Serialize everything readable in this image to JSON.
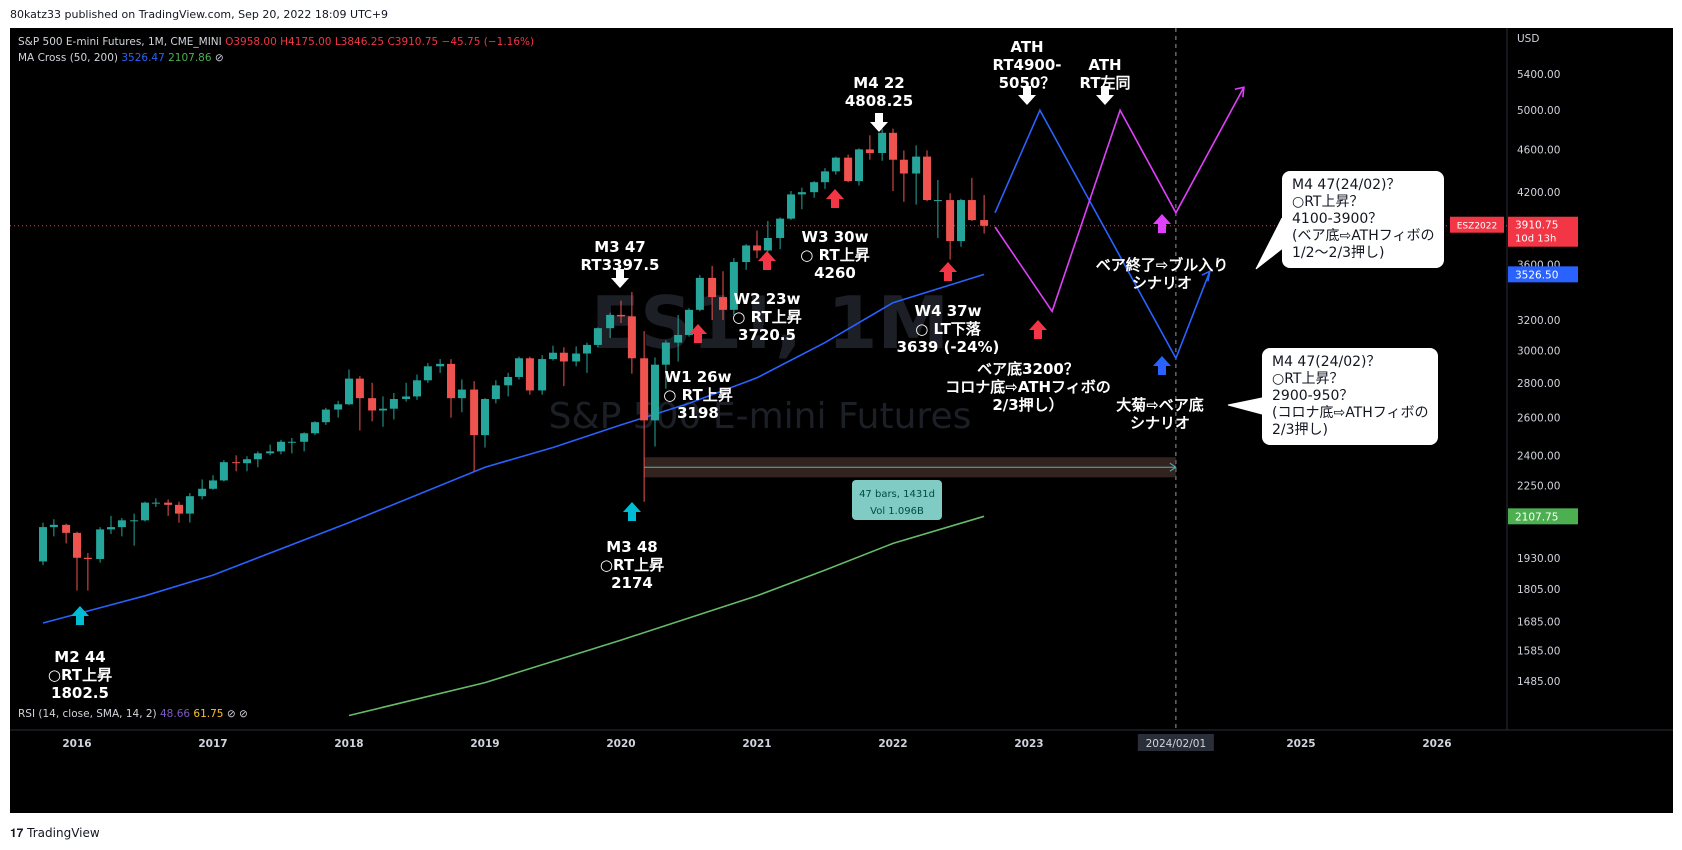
{
  "publisher_line": "80katz33 published on TradingView.com, Sep 20, 2022 18:09 UTC+9",
  "header": {
    "symbol_line_prefix": "S&P 500 E-mini Futures, 1M, CME_MINI",
    "ohlc": {
      "O": "O3958.00",
      "H": "H4175.00",
      "L": "L3846.25",
      "C": "C3910.75",
      "chg": "−45.75 (−1.16%)"
    },
    "ma_label": "MA Cross (50, 200)",
    "ma50": "3526.47",
    "ma200": "2107.86",
    "ma_icon": "⊘"
  },
  "rsi_label": "RSI (14, close, SMA, 14, 2)",
  "rsi_v1": "48.66",
  "rsi_v2": "61.75",
  "rsi_icons": "⊘ ⊘",
  "watermark_symbol": "ES1!, 1M",
  "watermark_name": "S&P 500 E-mini Futures",
  "tv_brand": "TradingView",
  "colors": {
    "up": "#26a69a",
    "down": "#ef5350",
    "ma50": "#2962ff",
    "ma200": "#66bb6a",
    "pink": "#e040fb",
    "blue_scn": "#2962ff"
  },
  "chart_data": {
    "type": "candlestick",
    "y_scale": "log",
    "currency": "USD",
    "ylim": [
      1380,
      6000
    ],
    "x_labels": [
      "2016",
      "2017",
      "2018",
      "2019",
      "2020",
      "2021",
      "2022",
      "2023",
      "2024/02/01",
      "2025",
      "2026"
    ],
    "y_ticks": [
      "5400.00",
      "5000.00",
      "4600.00",
      "4200.00",
      "3600.00",
      "3200.00",
      "3000.00",
      "2800.00",
      "2600.00",
      "2400.00",
      "2250.00",
      "1930.00",
      "1805.00",
      "1685.00",
      "1585.00",
      "1485.00"
    ],
    "price_labels": [
      {
        "text": "ESZ2022",
        "value": 3910.75,
        "sub": "10d 13h",
        "value_text": "3910.75",
        "color": "#f23645"
      },
      {
        "text": "",
        "value": 3526.5,
        "value_text": "3526.50",
        "color": "#2962ff"
      },
      {
        "text": "",
        "value": 2107.75,
        "value_text": "2107.75",
        "color": "#4caf50"
      }
    ],
    "candles_note": "Monthly candles Oct 2015 – Sep 2022 (approximate)",
    "candles": [
      [
        2015.75,
        1915,
        2080,
        1900,
        2060
      ],
      [
        2015.83,
        2060,
        2095,
        2020,
        2070
      ],
      [
        2015.92,
        2070,
        2075,
        1990,
        2035
      ],
      [
        2016.0,
        2035,
        2040,
        1800,
        1930
      ],
      [
        2016.08,
        1930,
        1950,
        1800,
        1925
      ],
      [
        2016.17,
        1925,
        2060,
        1910,
        2050
      ],
      [
        2016.25,
        2050,
        2110,
        2030,
        2060
      ],
      [
        2016.33,
        2060,
        2100,
        2020,
        2090
      ],
      [
        2016.42,
        2090,
        2120,
        1980,
        2090
      ],
      [
        2016.5,
        2090,
        2175,
        2085,
        2170
      ],
      [
        2016.58,
        2170,
        2190,
        2150,
        2170
      ],
      [
        2016.67,
        2170,
        2185,
        2110,
        2160
      ],
      [
        2016.75,
        2160,
        2175,
        2080,
        2120
      ],
      [
        2016.83,
        2120,
        2215,
        2080,
        2200
      ],
      [
        2016.92,
        2200,
        2280,
        2185,
        2235
      ],
      [
        2017.0,
        2235,
        2300,
        2230,
        2275
      ],
      [
        2017.08,
        2275,
        2375,
        2270,
        2365
      ],
      [
        2017.17,
        2365,
        2400,
        2320,
        2360
      ],
      [
        2017.25,
        2360,
        2395,
        2320,
        2380
      ],
      [
        2017.33,
        2380,
        2420,
        2340,
        2410
      ],
      [
        2017.42,
        2410,
        2455,
        2400,
        2420
      ],
      [
        2017.5,
        2420,
        2480,
        2405,
        2470
      ],
      [
        2017.58,
        2470,
        2490,
        2410,
        2470
      ],
      [
        2017.67,
        2470,
        2520,
        2420,
        2515
      ],
      [
        2017.75,
        2515,
        2580,
        2505,
        2575
      ],
      [
        2017.83,
        2575,
        2655,
        2560,
        2645
      ],
      [
        2017.92,
        2645,
        2695,
        2600,
        2675
      ],
      [
        2018.0,
        2675,
        2880,
        2670,
        2825
      ],
      [
        2018.08,
        2825,
        2840,
        2530,
        2710
      ],
      [
        2018.17,
        2710,
        2800,
        2580,
        2640
      ],
      [
        2018.25,
        2640,
        2720,
        2550,
        2650
      ],
      [
        2018.33,
        2650,
        2740,
        2590,
        2705
      ],
      [
        2018.42,
        2705,
        2800,
        2690,
        2720
      ],
      [
        2018.5,
        2720,
        2850,
        2700,
        2815
      ],
      [
        2018.58,
        2815,
        2920,
        2800,
        2900
      ],
      [
        2018.67,
        2900,
        2945,
        2860,
        2915
      ],
      [
        2018.75,
        2915,
        2945,
        2600,
        2710
      ],
      [
        2018.83,
        2710,
        2820,
        2630,
        2760
      ],
      [
        2018.92,
        2760,
        2810,
        2320,
        2505
      ],
      [
        2019.0,
        2505,
        2710,
        2440,
        2705
      ],
      [
        2019.08,
        2705,
        2815,
        2680,
        2785
      ],
      [
        2019.17,
        2785,
        2860,
        2720,
        2835
      ],
      [
        2019.25,
        2835,
        2960,
        2820,
        2950
      ],
      [
        2019.33,
        2950,
        2960,
        2730,
        2755
      ],
      [
        2019.42,
        2755,
        2970,
        2730,
        2945
      ],
      [
        2019.5,
        2945,
        3030,
        2935,
        2985
      ],
      [
        2019.58,
        2985,
        3020,
        2780,
        2930
      ],
      [
        2019.67,
        2930,
        3025,
        2900,
        2980
      ],
      [
        2019.75,
        2980,
        3050,
        2860,
        3035
      ],
      [
        2019.83,
        3035,
        3150,
        3020,
        3145
      ],
      [
        2019.92,
        3145,
        3250,
        3080,
        3235
      ],
      [
        2020.0,
        3235,
        3335,
        3180,
        3225
      ],
      [
        2020.08,
        3225,
        3397,
        2855,
        2950
      ],
      [
        2020.17,
        2950,
        3125,
        2174,
        2585
      ],
      [
        2020.25,
        2585,
        2955,
        2445,
        2910
      ],
      [
        2020.33,
        2910,
        3065,
        2765,
        3050
      ],
      [
        2020.42,
        3050,
        3235,
        2930,
        3100
      ],
      [
        2020.5,
        3100,
        3280,
        3090,
        3270
      ],
      [
        2020.58,
        3270,
        3520,
        3260,
        3500
      ],
      [
        2020.67,
        3500,
        3590,
        3200,
        3360
      ],
      [
        2020.75,
        3360,
        3550,
        3200,
        3270
      ],
      [
        2020.83,
        3270,
        3650,
        3235,
        3620
      ],
      [
        2020.92,
        3620,
        3760,
        3560,
        3750
      ],
      [
        2021.0,
        3750,
        3870,
        3650,
        3710
      ],
      [
        2021.08,
        3710,
        3950,
        3700,
        3810
      ],
      [
        2021.17,
        3810,
        3980,
        3720,
        3970
      ],
      [
        2021.25,
        3970,
        4210,
        3960,
        4180
      ],
      [
        2021.33,
        4180,
        4240,
        4050,
        4200
      ],
      [
        2021.42,
        4200,
        4300,
        4150,
        4290
      ],
      [
        2021.5,
        4290,
        4420,
        4230,
        4390
      ],
      [
        2021.58,
        4390,
        4530,
        4360,
        4520
      ],
      [
        2021.67,
        4520,
        4550,
        4290,
        4300
      ],
      [
        2021.75,
        4300,
        4610,
        4260,
        4600
      ],
      [
        2021.83,
        4600,
        4740,
        4500,
        4565
      ],
      [
        2021.92,
        4565,
        4805,
        4490,
        4765
      ],
      [
        2022.0,
        4765,
        4808,
        4210,
        4500
      ],
      [
        2022.08,
        4500,
        4590,
        4115,
        4370
      ],
      [
        2022.17,
        4370,
        4640,
        4090,
        4530
      ],
      [
        2022.25,
        4530,
        4590,
        4120,
        4130
      ],
      [
        2022.33,
        4130,
        4310,
        3810,
        4130
      ],
      [
        2022.42,
        4130,
        4190,
        3639,
        3785
      ],
      [
        2022.5,
        3785,
        4140,
        3740,
        4130
      ],
      [
        2022.58,
        4130,
        4330,
        3950,
        3958
      ],
      [
        2022.67,
        3958,
        4175,
        3846,
        3910
      ]
    ],
    "ma50_points": [
      [
        2015.75,
        1680
      ],
      [
        2016.5,
        1780
      ],
      [
        2017.0,
        1860
      ],
      [
        2018.0,
        2080
      ],
      [
        2019.0,
        2340
      ],
      [
        2019.5,
        2440
      ],
      [
        2020.0,
        2560
      ],
      [
        2020.5,
        2680
      ],
      [
        2021.0,
        2830
      ],
      [
        2021.5,
        3050
      ],
      [
        2022.0,
        3320
      ],
      [
        2022.67,
        3526
      ]
    ],
    "ma200_points": [
      [
        2018.0,
        1380
      ],
      [
        2019.0,
        1480
      ],
      [
        2020.0,
        1620
      ],
      [
        2021.0,
        1780
      ],
      [
        2021.5,
        1880
      ],
      [
        2022.0,
        1990
      ],
      [
        2022.67,
        2108
      ]
    ],
    "annotations": [
      {
        "text_lines": [
          "M2 44",
          "○RT上昇",
          "1802.5"
        ],
        "arrow": "cyan-up"
      },
      {
        "text_lines": [
          "M3 47",
          "RT3397.5"
        ],
        "arrow": "white-down"
      },
      {
        "text_lines": [
          "M3 48",
          "○RT上昇",
          "2174"
        ],
        "arrow": "cyan-up"
      },
      {
        "text_lines": [
          "W1 26w",
          "○ RT上昇",
          "3198"
        ],
        "arrow": "red-up"
      },
      {
        "text_lines": [
          "W2 23w",
          "○ RT上昇",
          "3720.5"
        ],
        "arrow": "red-up"
      },
      {
        "text_lines": [
          "W3 30w",
          "○ RT上昇",
          "4260"
        ],
        "arrow": "red-up"
      },
      {
        "text_lines": [
          "M4 22",
          "4808.25"
        ],
        "arrow": "white-down"
      },
      {
        "text_lines": [
          "W4 37w",
          "○ LT下落",
          "3639 (-24%)"
        ],
        "arrow": "red-up"
      },
      {
        "text_lines": [
          "ATH",
          "RT4900-",
          "5050？"
        ],
        "arrow": "white-down"
      },
      {
        "text_lines": [
          "ATH",
          "RT左同"
        ],
        "arrow": "white-down"
      },
      {
        "text_lines": [
          "ベア底3200？",
          "コロナ底⇨ATHフィボの",
          "2/3押し）"
        ],
        "arrow": "red-up"
      },
      {
        "text_lines": [
          "ベア終了⇨ブル入り",
          "シナリオ"
        ],
        "arrow": "pink-up"
      },
      {
        "text_lines": [
          "大菊⇨ベア底",
          "シナリオ"
        ],
        "arrow": "blue-up"
      }
    ],
    "measure_box": {
      "line1": "47 bars, 1431d",
      "line2": "Vol 1.096B"
    },
    "callouts": [
      {
        "lines": [
          "M4 47(24/02)？",
          "○RT上昇？",
          "4100-3900？",
          "(ベア底⇨ATHフィボの",
          "1/2〜2/3押し)"
        ]
      },
      {
        "lines": [
          "M4 47(24/02)？",
          "○RT上昇？",
          "2900-950？",
          "(コロナ底⇨ATHフィボの",
          "2/3押し)"
        ]
      }
    ]
  }
}
